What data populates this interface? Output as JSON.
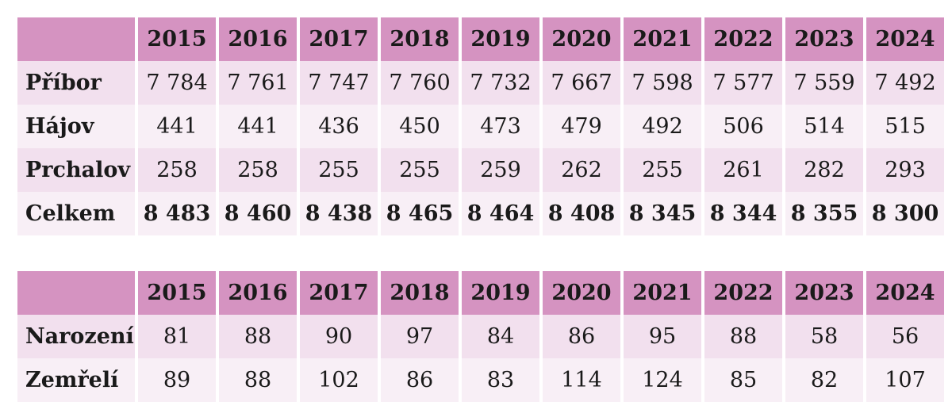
{
  "population_table": {
    "years": [
      "2015",
      "2016",
      "2017",
      "2018",
      "2019",
      "2020",
      "2021",
      "2022",
      "2023",
      "2024"
    ],
    "rows": [
      {
        "label": "Příbor",
        "values": [
          "7 784",
          "7 761",
          "7 747",
          "7 760",
          "7 732",
          "7 667",
          "7 598",
          "7 577",
          "7 559",
          "7 492"
        ]
      },
      {
        "label": "Hájov",
        "values": [
          "441",
          "441",
          "436",
          "450",
          "473",
          "479",
          "492",
          "506",
          "514",
          "515"
        ]
      },
      {
        "label": "Prchalov",
        "values": [
          "258",
          "258",
          "255",
          "255",
          "259",
          "262",
          "255",
          "261",
          "282",
          "293"
        ]
      },
      {
        "label": "Celkem",
        "values": [
          "8 483",
          "8 460",
          "8 438",
          "8 465",
          "8 464",
          "8 408",
          "8 345",
          "8 344",
          "8 355",
          "8 300"
        ]
      }
    ]
  },
  "births_deaths_table": {
    "years": [
      "2015",
      "2016",
      "2017",
      "2018",
      "2019",
      "2020",
      "2021",
      "2022",
      "2023",
      "2024"
    ],
    "rows": [
      {
        "label": "Narození",
        "values": [
          "81",
          "88",
          "90",
          "97",
          "84",
          "86",
          "95",
          "88",
          "58",
          "56"
        ]
      },
      {
        "label": "Zemřelí",
        "values": [
          "89",
          "88",
          "102",
          "86",
          "83",
          "114",
          "124",
          "85",
          "82",
          "107"
        ]
      }
    ]
  },
  "colors": {
    "header_bg": "#d593c1",
    "row_bg_a": "#f2e0ee",
    "row_bg_b": "#f8eff6"
  }
}
